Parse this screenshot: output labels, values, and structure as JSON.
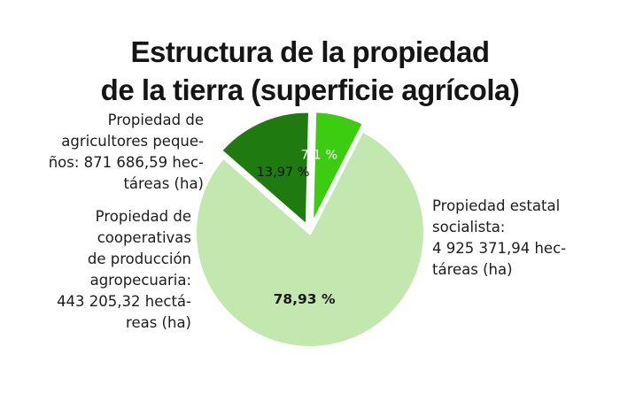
{
  "chart_data": {
    "type": "pie",
    "title_lines": [
      "Estructura de la propiedad",
      "de la tierra (superficie agrícola)"
    ],
    "slices": [
      {
        "name": "Propiedad estatal socialista",
        "value": 78.93,
        "label": "78,93 %",
        "hectares": "4 925 371,94",
        "color": "#c2e8b0"
      },
      {
        "name": "Propiedad de agricultores pequeños",
        "value": 13.97,
        "label": "13,97 %",
        "hectares": "871 686,59",
        "color": "#1f7a0f"
      },
      {
        "name": "Propiedad de cooperativas de producción agropecuaria",
        "value": 7.1,
        "label": "7,1 %",
        "hectares": "443 205,32",
        "color": "#3ccc10"
      }
    ],
    "annotations": {
      "pequenos": [
        "Propiedad de",
        "agricultores peque-",
        "ños: 871 686,59 hec-",
        "táreas (ha)"
      ],
      "cooperativas": [
        "Propiedad de",
        "cooperativas",
        "de producción",
        "agropecuaria:",
        "443 205,32 hectá-",
        "reas (ha)"
      ],
      "estatal": [
        "Propiedad estatal",
        "socialista:",
        "4 925 371,94 hec-",
        "táreas (ha)"
      ]
    }
  }
}
